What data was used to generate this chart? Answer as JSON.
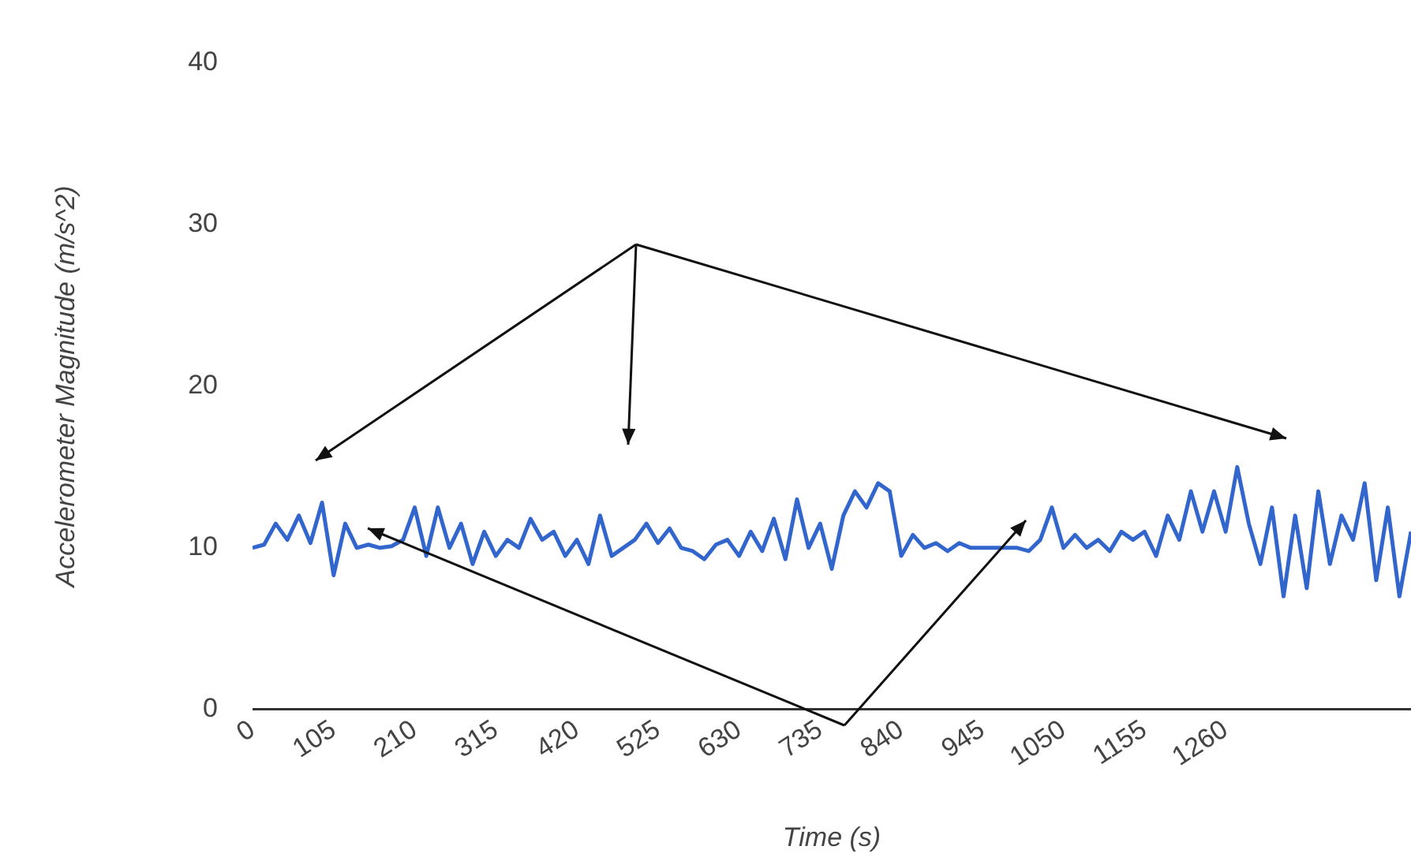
{
  "chart_data": {
    "type": "line",
    "xlabel": "Time (s)",
    "ylabel": "Accelerometer Magnitude (m/s^2)",
    "x": [
      0,
      15,
      30,
      45,
      60,
      75,
      90,
      105,
      120,
      135,
      150,
      165,
      180,
      195,
      210,
      225,
      240,
      255,
      270,
      285,
      300,
      315,
      330,
      345,
      360,
      375,
      390,
      405,
      420,
      435,
      450,
      465,
      480,
      495,
      510,
      525,
      540,
      555,
      570,
      585,
      600,
      615,
      630,
      645,
      660,
      675,
      690,
      705,
      720,
      735,
      750,
      765,
      780,
      795,
      810,
      825,
      840,
      855,
      870,
      885,
      900,
      915,
      930,
      945,
      960,
      975,
      990,
      1005,
      1020,
      1035,
      1050,
      1065,
      1080,
      1095,
      1110,
      1125,
      1140,
      1155,
      1170,
      1185,
      1200,
      1215,
      1230,
      1245,
      1260,
      1275,
      1290,
      1305,
      1320,
      1335,
      1350,
      1365,
      1380,
      1395,
      1410,
      1425,
      1440,
      1455,
      1470,
      1485,
      1500
    ],
    "series": [
      {
        "color": "#3366cc",
        "values": [
          10,
          10.2,
          11.5,
          10.5,
          12,
          10.3,
          12.8,
          8.3,
          11.5,
          10,
          10.2,
          10,
          10.1,
          10.5,
          12.5,
          9.5,
          12.5,
          10,
          11.5,
          9,
          11,
          9.5,
          10.5,
          10,
          11.8,
          10.5,
          11,
          9.5,
          10.5,
          9,
          12,
          9.5,
          10,
          10.5,
          11.5,
          10.3,
          11.2,
          10,
          9.8,
          9.3,
          10.2,
          10.5,
          9.5,
          11,
          9.8,
          11.8,
          9.3,
          13,
          10,
          11.5,
          8.7,
          12,
          13.5,
          12.5,
          14,
          13.5,
          9.5,
          10.8,
          10,
          10.3,
          9.8,
          10.3,
          10,
          10,
          10,
          10,
          10,
          9.8,
          10.5,
          12.5,
          10,
          10.8,
          10,
          10.5,
          9.8,
          11,
          10.5,
          11,
          9.5,
          12,
          10.5,
          13.5,
          11,
          13.5,
          11,
          15,
          11.5,
          9,
          12.5,
          7,
          12,
          7.5,
          13.5,
          9,
          12,
          10.5,
          14,
          8,
          12.5,
          7,
          11
        ]
      }
    ],
    "xlim": [
      0,
      1500
    ],
    "xticks": [
      0,
      105,
      210,
      315,
      420,
      525,
      630,
      735,
      840,
      945,
      1050,
      1155,
      1260
    ],
    "ylim": [
      0,
      40
    ],
    "yticks": [
      0,
      10,
      20,
      30,
      40
    ],
    "grid": false,
    "legend": false,
    "marker": "none"
  }
}
